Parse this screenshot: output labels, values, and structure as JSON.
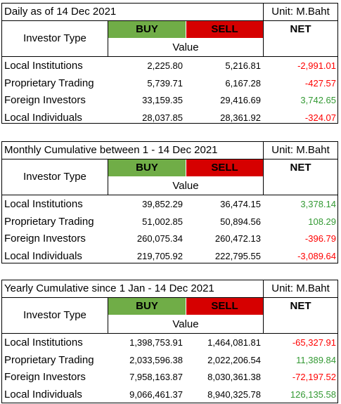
{
  "tables": [
    {
      "title": "Daily as of 14 Dec 2021",
      "unit": "Unit: M.Baht",
      "investor_type_label": "Investor Type",
      "buy_label": "BUY",
      "sell_label": "SELL",
      "net_label": "NET",
      "value_label": "Value",
      "rows": [
        {
          "name": "Local Institutions",
          "buy": "2,225.80",
          "sell": "5,216.81",
          "net": "-2,991.01",
          "net_sign": "neg"
        },
        {
          "name": "Proprietary Trading",
          "buy": "5,739.71",
          "sell": "6,167.28",
          "net": "-427.57",
          "net_sign": "neg"
        },
        {
          "name": "Foreign Investors",
          "buy": "33,159.35",
          "sell": "29,416.69",
          "net": "3,742.65",
          "net_sign": "pos"
        },
        {
          "name": "Local Individuals",
          "buy": "28,037.85",
          "sell": "28,361.92",
          "net": "-324.07",
          "net_sign": "neg"
        }
      ]
    },
    {
      "title": "Monthly Cumulative between 1 - 14 Dec 2021",
      "unit": "Unit: M.Baht",
      "investor_type_label": "Investor Type",
      "buy_label": "BUY",
      "sell_label": "SELL",
      "net_label": "NET",
      "value_label": "Value",
      "rows": [
        {
          "name": "Local Institutions",
          "buy": "39,852.29",
          "sell": "36,474.15",
          "net": "3,378.14",
          "net_sign": "pos"
        },
        {
          "name": "Proprietary Trading",
          "buy": "51,002.85",
          "sell": "50,894.56",
          "net": "108.29",
          "net_sign": "pos"
        },
        {
          "name": "Foreign Investors",
          "buy": "260,075.34",
          "sell": "260,472.13",
          "net": "-396.79",
          "net_sign": "neg"
        },
        {
          "name": "Local Individuals",
          "buy": "219,705.92",
          "sell": "222,795.55",
          "net": "-3,089.64",
          "net_sign": "neg"
        }
      ]
    },
    {
      "title": "Yearly Cumulative since 1 Jan - 14 Dec 2021",
      "unit": "Unit: M.Baht",
      "investor_type_label": "Investor Type",
      "buy_label": "BUY",
      "sell_label": "SELL",
      "net_label": "NET",
      "value_label": "Value",
      "rows": [
        {
          "name": "Local Institutions",
          "buy": "1,398,753.91",
          "sell": "1,464,081.81",
          "net": "-65,327.91",
          "net_sign": "neg"
        },
        {
          "name": "Proprietary Trading",
          "buy": "2,033,596.38",
          "sell": "2,022,206.54",
          "net": "11,389.84",
          "net_sign": "pos"
        },
        {
          "name": "Foreign Investors",
          "buy": "7,958,163.87",
          "sell": "8,030,361.38",
          "net": "-72,197.52",
          "net_sign": "neg"
        },
        {
          "name": "Local Individuals",
          "buy": "9,066,461.37",
          "sell": "8,940,325.78",
          "net": "126,135.58",
          "net_sign": "pos"
        }
      ]
    }
  ],
  "colors": {
    "buy_header": "#70ad47",
    "sell_header": "#d60000",
    "negative": "#ff0000",
    "positive": "#339933"
  }
}
